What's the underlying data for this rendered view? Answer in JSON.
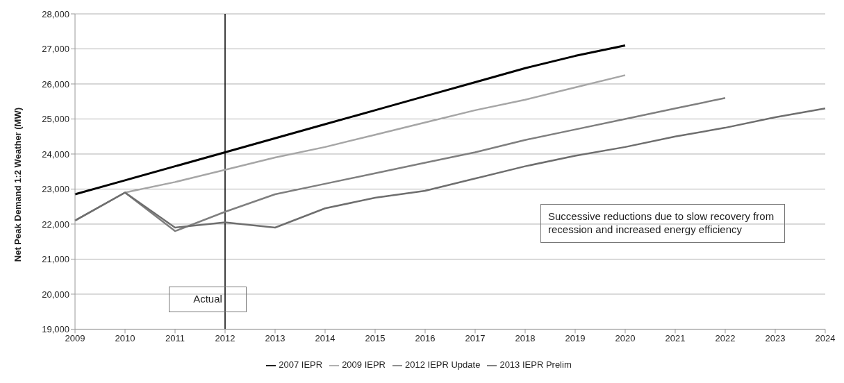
{
  "chart_data": {
    "type": "line",
    "ylabel": "Net Peak Demand 1:2 Weather (MW)",
    "categories": [
      "2009",
      "2010",
      "2011",
      "2012",
      "2013",
      "2014",
      "2015",
      "2016",
      "2017",
      "2018",
      "2019",
      "2020",
      "2021",
      "2022",
      "2023",
      "2024"
    ],
    "series": [
      {
        "name": "2007 IEPR",
        "color": "#000000",
        "values": [
          22850,
          23250,
          23650,
          24050,
          24450,
          24850,
          25250,
          25650,
          26050,
          26450,
          26800,
          27100,
          null,
          null,
          null,
          null
        ]
      },
      {
        "name": "2009 IEPR",
        "color": "#a6a6a6",
        "values": [
          null,
          22900,
          23200,
          23550,
          23900,
          24200,
          24550,
          24900,
          25250,
          25550,
          25900,
          26250,
          null,
          null,
          null,
          null
        ]
      },
      {
        "name": "2012 IEPR Update",
        "color": "#7f7f7f",
        "values": [
          22100,
          22900,
          21800,
          22350,
          22850,
          23150,
          23450,
          23750,
          24050,
          24400,
          24700,
          25000,
          25300,
          25600,
          null,
          null
        ]
      },
      {
        "name": "2013 IEPR Prelim",
        "color": "#6e6e6e",
        "values": [
          22100,
          22900,
          21900,
          22050,
          21900,
          22450,
          22750,
          22950,
          23300,
          23650,
          23950,
          24200,
          24500,
          24750,
          25050,
          25300
        ]
      }
    ],
    "ylim": [
      19000,
      28000
    ],
    "yticks": [
      {
        "value": 19000,
        "label": "19,000"
      },
      {
        "value": 20000,
        "label": "20,000"
      },
      {
        "value": 21000,
        "label": "21,000"
      },
      {
        "value": 22000,
        "label": "22,000"
      },
      {
        "value": 23000,
        "label": "23,000"
      },
      {
        "value": 24000,
        "label": "24,000"
      },
      {
        "value": 25000,
        "label": "25,000"
      },
      {
        "value": 26000,
        "label": "26,000"
      },
      {
        "value": 27000,
        "label": "27,000"
      },
      {
        "value": 28000,
        "label": "28,000"
      }
    ],
    "grid": "y",
    "legend": "bottom",
    "marker": "none",
    "line_style": "solid",
    "ref_lines": [
      {
        "axis": "x",
        "value": "2012",
        "color": "#000000"
      }
    ],
    "annotations": [
      "Actual",
      "Successive reductions due to slow recovery from recession and increased energy efficiency"
    ]
  }
}
